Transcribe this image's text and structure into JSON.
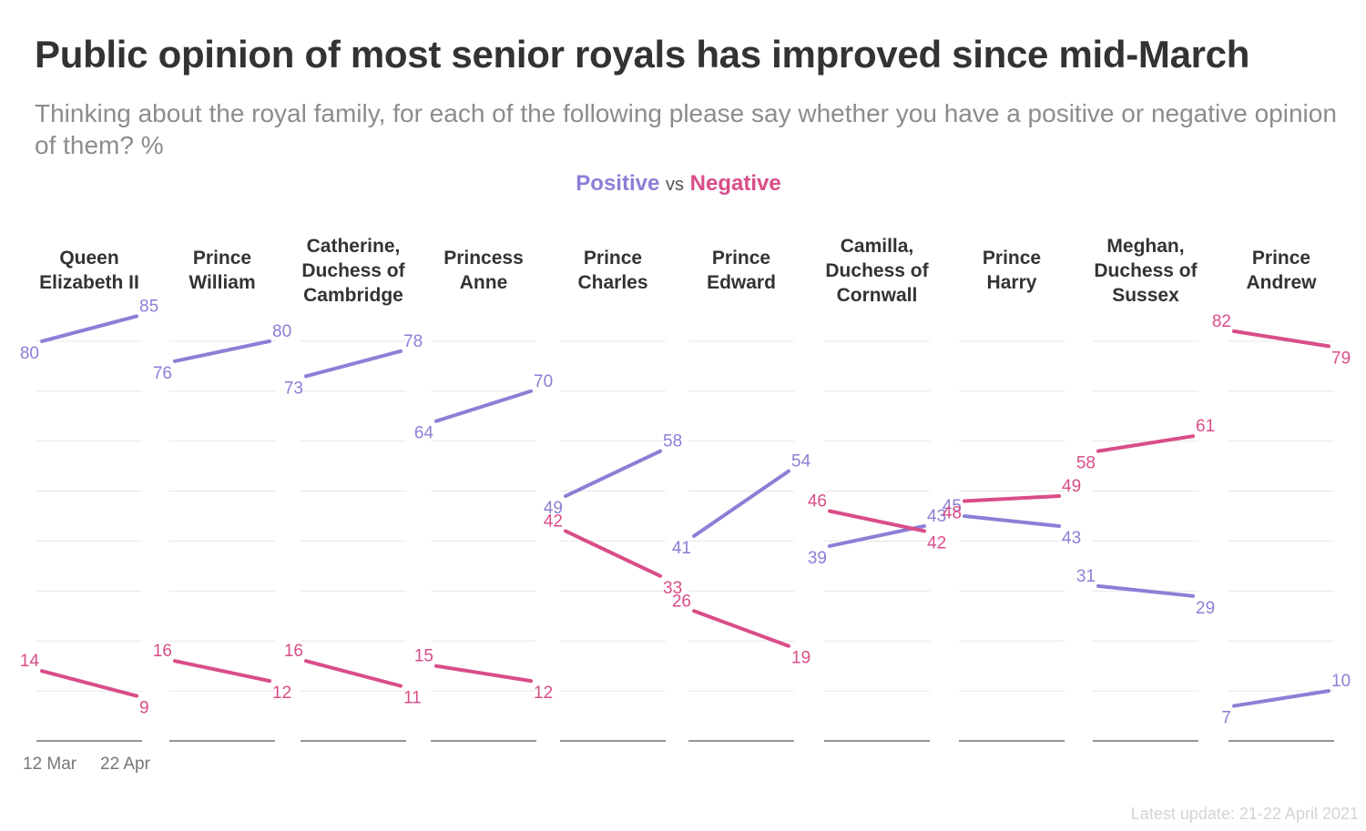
{
  "header": {
    "title": "Public opinion of most senior royals has improved since mid-March",
    "subtitle": "Thinking about the royal family, for each of the following please say whether you have a positive or negative opinion of them? %"
  },
  "legend": {
    "positive": "Positive",
    "vs": "vs",
    "negative": "Negative"
  },
  "footer": {
    "note": "Latest update: 21-22 April 2021"
  },
  "colors": {
    "positive": "#8b7fd6",
    "negative": "#d94d88",
    "grid": "#e6e6e6",
    "baseline": "#555555"
  },
  "chart_data": {
    "type": "line",
    "title": "Public opinion of most senior royals has improved since mid-March",
    "x": [
      "12 Mar",
      "22 Apr"
    ],
    "ylim": [
      0,
      90
    ],
    "grid": true,
    "legend_position": "top-center",
    "panels": [
      {
        "name": "Queen\nElizabeth II",
        "positive": [
          80,
          85
        ],
        "negative": [
          14,
          9
        ]
      },
      {
        "name": "Prince\nWilliam",
        "positive": [
          76,
          80
        ],
        "negative": [
          16,
          12
        ]
      },
      {
        "name": "Catherine,\nDuchess of\nCambridge",
        "positive": [
          73,
          78
        ],
        "negative": [
          16,
          11
        ]
      },
      {
        "name": "Princess\nAnne",
        "positive": [
          64,
          70
        ],
        "negative": [
          15,
          12
        ]
      },
      {
        "name": "Prince\nCharles",
        "positive": [
          49,
          58
        ],
        "negative": [
          42,
          33
        ]
      },
      {
        "name": "Prince\nEdward",
        "positive": [
          41,
          54
        ],
        "negative": [
          26,
          19
        ]
      },
      {
        "name": "Camilla,\nDuchess of\nCornwall",
        "positive": [
          39,
          43
        ],
        "negative": [
          46,
          42
        ]
      },
      {
        "name": "Prince\nHarry",
        "positive": [
          45,
          43
        ],
        "negative": [
          48,
          49
        ]
      },
      {
        "name": "Meghan,\nDuchess of\nSussex",
        "positive": [
          31,
          29
        ],
        "negative": [
          58,
          61
        ]
      },
      {
        "name": "Prince\nAndrew",
        "positive": [
          7,
          10
        ],
        "negative": [
          82,
          79
        ]
      }
    ]
  }
}
